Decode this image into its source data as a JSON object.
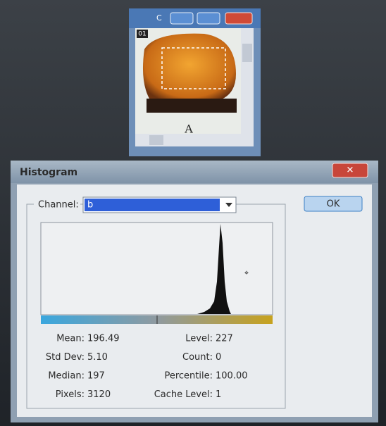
{
  "image_window": {
    "title": "C",
    "frame_label": "01",
    "caption": "A"
  },
  "dialog": {
    "title": "Histogram",
    "channel_label": "Channel:",
    "channel_value": "b",
    "ok_button": "OK",
    "stats_left": [
      {
        "label": "Mean:",
        "value": "196.49"
      },
      {
        "label": "Std Dev:",
        "value": "5.10"
      },
      {
        "label": "Median:",
        "value": "197"
      },
      {
        "label": "Pixels:",
        "value": "3120"
      }
    ],
    "stats_right": [
      {
        "label": "Level:",
        "value": "227"
      },
      {
        "label": "Count:",
        "value": "0"
      },
      {
        "label": "Percentile:",
        "value": "100.00"
      },
      {
        "label": "Cache Level:",
        "value": "1"
      }
    ]
  }
}
